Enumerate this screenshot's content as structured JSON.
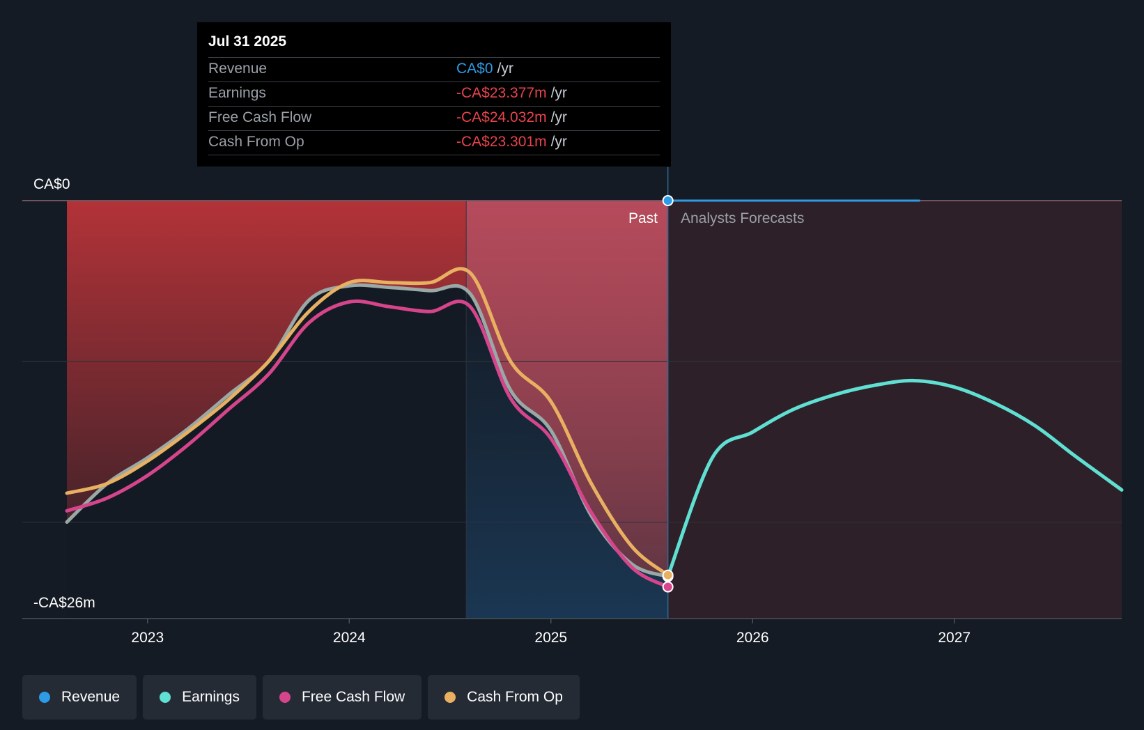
{
  "tooltip": {
    "date": "Jul 31 2025",
    "rows": [
      {
        "label": "Revenue",
        "value": "CA$0",
        "unit": "/yr",
        "color": "#2e9be6"
      },
      {
        "label": "Earnings",
        "value": "-CA$23.377m",
        "unit": "/yr",
        "color": "#e8434b"
      },
      {
        "label": "Free Cash Flow",
        "value": "-CA$24.032m",
        "unit": "/yr",
        "color": "#e8434b"
      },
      {
        "label": "Cash From Op",
        "value": "-CA$23.301m",
        "unit": "/yr",
        "color": "#e8434b"
      }
    ]
  },
  "legend": [
    {
      "label": "Revenue",
      "color": "#2e9be6"
    },
    {
      "label": "Earnings",
      "color": "#5fe0d2"
    },
    {
      "label": "Free Cash Flow",
      "color": "#d6458b"
    },
    {
      "label": "Cash From Op",
      "color": "#e8b060"
    }
  ],
  "chart_data": {
    "type": "line",
    "title": "",
    "y_axis_labels": {
      "top": "CA$0",
      "bottom": "-CA$26m"
    },
    "ylim": [
      -26,
      0
    ],
    "xlim": [
      2022.6,
      2027.83
    ],
    "x_ticks": [
      2023,
      2024,
      2025,
      2026,
      2027
    ],
    "x_tick_labels": [
      "2023",
      "2024",
      "2025",
      "2026",
      "2027"
    ],
    "divider_x": 2025.58,
    "past_label": "Past",
    "forecast_label": "Analysts Forecasts",
    "series": [
      {
        "name": "Revenue",
        "color": "#2e9be6",
        "points": [
          [
            2025.58,
            0
          ],
          [
            2026.83,
            0
          ]
        ]
      },
      {
        "name": "Earnings",
        "color": "#5fe0d2",
        "points": [
          [
            2022.6,
            -20.0
          ],
          [
            2022.8,
            -17.6
          ],
          [
            2023.0,
            -16.0
          ],
          [
            2023.2,
            -14.2
          ],
          [
            2023.4,
            -12.1
          ],
          [
            2023.6,
            -10.0
          ],
          [
            2023.8,
            -6.2
          ],
          [
            2024.0,
            -5.3
          ],
          [
            2024.2,
            -5.4
          ],
          [
            2024.4,
            -5.6
          ],
          [
            2024.6,
            -5.8
          ],
          [
            2024.8,
            -11.8
          ],
          [
            2025.0,
            -14.3
          ],
          [
            2025.2,
            -19.6
          ],
          [
            2025.4,
            -22.6
          ],
          [
            2025.58,
            -23.38
          ],
          [
            2025.8,
            -16.0
          ],
          [
            2026.0,
            -14.4
          ],
          [
            2026.2,
            -13.0
          ],
          [
            2026.4,
            -12.1
          ],
          [
            2026.6,
            -11.5
          ],
          [
            2026.8,
            -11.2
          ],
          [
            2027.0,
            -11.6
          ],
          [
            2027.2,
            -12.6
          ],
          [
            2027.4,
            -14.0
          ],
          [
            2027.6,
            -15.9
          ],
          [
            2027.83,
            -18.0
          ]
        ]
      },
      {
        "name": "Free Cash Flow",
        "color": "#d6458b",
        "points": [
          [
            2022.6,
            -19.3
          ],
          [
            2022.8,
            -18.5
          ],
          [
            2023.0,
            -17.1
          ],
          [
            2023.2,
            -15.2
          ],
          [
            2023.4,
            -13.0
          ],
          [
            2023.6,
            -10.8
          ],
          [
            2023.8,
            -7.6
          ],
          [
            2024.0,
            -6.3
          ],
          [
            2024.2,
            -6.6
          ],
          [
            2024.4,
            -6.9
          ],
          [
            2024.6,
            -6.6
          ],
          [
            2024.8,
            -12.3
          ],
          [
            2025.0,
            -14.8
          ],
          [
            2025.2,
            -19.4
          ],
          [
            2025.4,
            -22.8
          ],
          [
            2025.58,
            -24.03
          ]
        ]
      },
      {
        "name": "Cash From Op",
        "color": "#e8b060",
        "points": [
          [
            2022.6,
            -18.2
          ],
          [
            2022.8,
            -17.6
          ],
          [
            2023.0,
            -16.2
          ],
          [
            2023.2,
            -14.4
          ],
          [
            2023.4,
            -12.4
          ],
          [
            2023.6,
            -10.0
          ],
          [
            2023.8,
            -6.9
          ],
          [
            2024.0,
            -5.1
          ],
          [
            2024.2,
            -5.1
          ],
          [
            2024.4,
            -5.1
          ],
          [
            2024.6,
            -4.5
          ],
          [
            2024.8,
            -10.0
          ],
          [
            2025.0,
            -12.5
          ],
          [
            2025.2,
            -17.6
          ],
          [
            2025.4,
            -21.5
          ],
          [
            2025.58,
            -23.3
          ]
        ]
      }
    ]
  }
}
